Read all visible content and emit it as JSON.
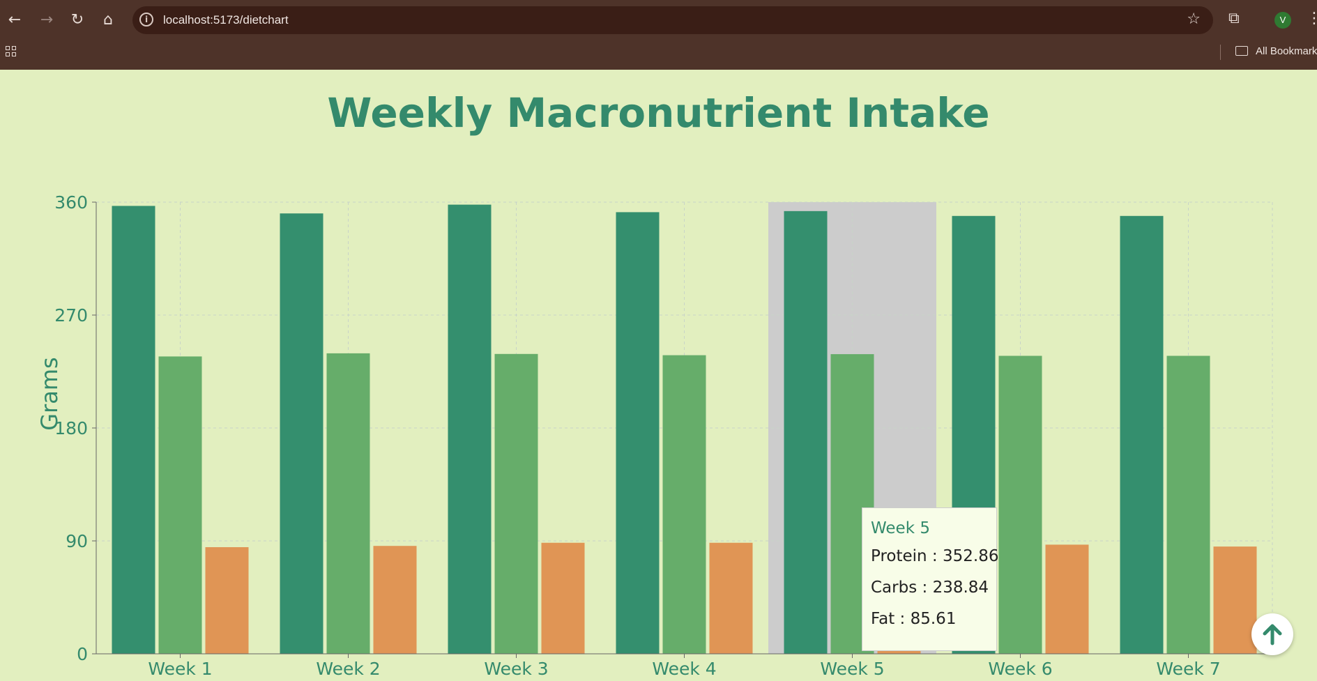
{
  "browser": {
    "url": "localhost:5173/dietchart",
    "avatar_letter": "V",
    "bookmarks_label": "All Bookmarks"
  },
  "colors": {
    "protein": "#348f6e",
    "carbs": "#66ad6a",
    "fat": "#e09555",
    "highlight": "#cccccc",
    "axis_text": "#348a6c"
  },
  "chart_data": {
    "type": "bar",
    "title": "Weekly Macronutrient Intake",
    "ylabel": "Grams",
    "xlabel": "",
    "ylim": [
      0,
      360
    ],
    "yticks": [
      0,
      90,
      180,
      270,
      360
    ],
    "grid": true,
    "categories": [
      "Week 1",
      "Week 2",
      "Week 3",
      "Week 4",
      "Week 5",
      "Week 6",
      "Week 7"
    ],
    "series": [
      {
        "name": "Protein",
        "values": [
          357,
          351,
          358,
          352,
          352.86,
          349,
          349
        ]
      },
      {
        "name": "Carbs",
        "values": [
          237,
          239.5,
          239,
          238,
          238.84,
          237.5,
          237.5
        ]
      },
      {
        "name": "Fat",
        "values": [
          85,
          86,
          88.5,
          88.5,
          85.61,
          87,
          85.5
        ]
      }
    ],
    "highlighted_category": "Week 5"
  },
  "tooltip": {
    "title": "Week 5",
    "rows": [
      "Protein : 352.86",
      "Carbs : 238.84",
      "Fat : 85.61"
    ]
  }
}
